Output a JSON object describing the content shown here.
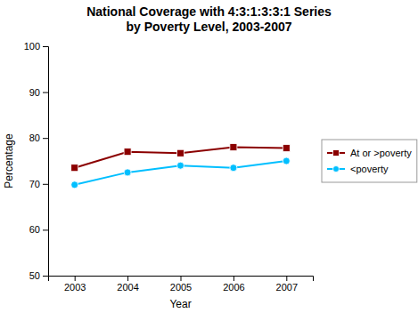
{
  "chart_data": {
    "type": "line",
    "title": "National Coverage with 4:3:1:3:3:1 Series\nby Poverty Level, 2003-2007",
    "xlabel": "Year",
    "ylabel": "Percentage",
    "x": [
      2003,
      2004,
      2005,
      2006,
      2007
    ],
    "series": [
      {
        "name": "At or >poverty",
        "color": "#8B0000",
        "marker": "square",
        "values": [
          73.5,
          77.0,
          76.7,
          78.0,
          77.8
        ]
      },
      {
        "name": "<poverty",
        "color": "#00BFFF",
        "marker": "circle",
        "values": [
          69.8,
          72.5,
          74.0,
          73.5,
          75.0
        ]
      }
    ],
    "xlim": [
      2002.5,
      2007.5
    ],
    "xticks": [
      2003,
      2004,
      2005,
      2006,
      2007
    ],
    "ylim": [
      50,
      100
    ],
    "yticks": [
      50,
      60,
      70,
      80,
      90,
      100
    ],
    "legend": "center right",
    "grid": false
  }
}
